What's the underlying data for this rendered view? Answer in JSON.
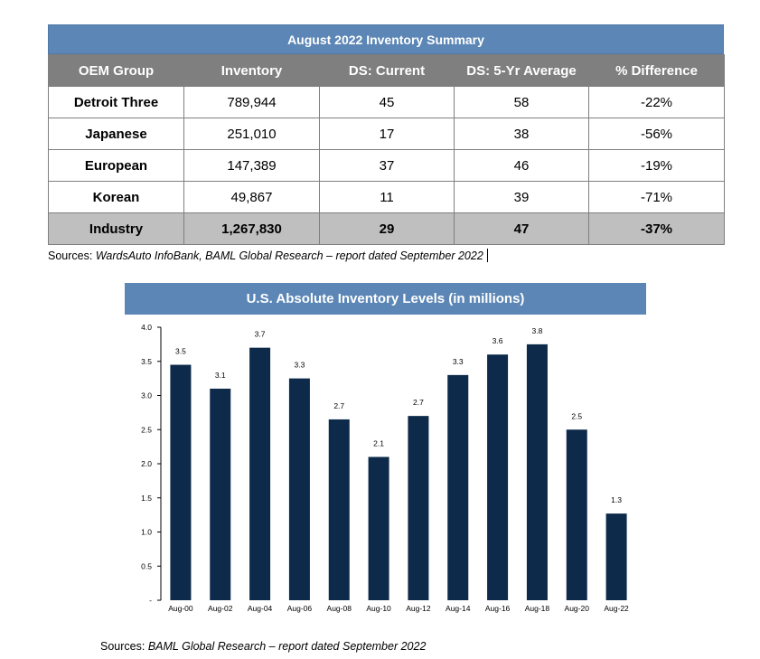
{
  "table": {
    "title": "August 2022 Inventory Summary",
    "headers": [
      "OEM Group",
      "Inventory",
      "DS: Current",
      "DS: 5-Yr Average",
      "% Difference"
    ],
    "rows": [
      [
        "Detroit Three",
        "789,944",
        "45",
        "58",
        "-22%"
      ],
      [
        "Japanese",
        "251,010",
        "17",
        "38",
        "-56%"
      ],
      [
        "European",
        "147,389",
        "37",
        "46",
        "-19%"
      ],
      [
        "Korean",
        "49,867",
        "11",
        "39",
        "-71%"
      ],
      [
        "Industry",
        "1,267,830",
        "29",
        "47",
        "-37%"
      ]
    ],
    "sources_prefix": "Sources: ",
    "sources_text": "WardsAuto InfoBank, BAML Global Research – report dated September 2022"
  },
  "chart_data": {
    "type": "bar",
    "title": "U.S. Absolute Inventory Levels (in millions)",
    "categories": [
      "Aug-00",
      "Aug-02",
      "Aug-04",
      "Aug-06",
      "Aug-08",
      "Aug-10",
      "Aug-12",
      "Aug-14",
      "Aug-16",
      "Aug-18",
      "Aug-20",
      "Aug-22"
    ],
    "values": [
      3.45,
      3.1,
      3.7,
      3.25,
      2.65,
      2.1,
      2.7,
      3.3,
      3.6,
      3.75,
      2.5,
      1.27
    ],
    "data_labels": [
      "3.5",
      "3.1",
      "3.7",
      "3.3",
      "2.7",
      "2.1",
      "2.7",
      "3.3",
      "3.6",
      "3.8",
      "2.5",
      "1.3"
    ],
    "y_ticks": [
      "-",
      "0.5",
      "1.0",
      "1.5",
      "2.0",
      "2.5",
      "3.0",
      "3.5",
      "4.0"
    ],
    "ylim": [
      0,
      4.0
    ],
    "xlabel": "",
    "ylabel": "",
    "bar_color": "#0d2a4a",
    "grid": false,
    "legend": "none"
  },
  "chart_sources": {
    "prefix": "Sources: ",
    "text": "BAML Global Research – report dated September 2022"
  }
}
